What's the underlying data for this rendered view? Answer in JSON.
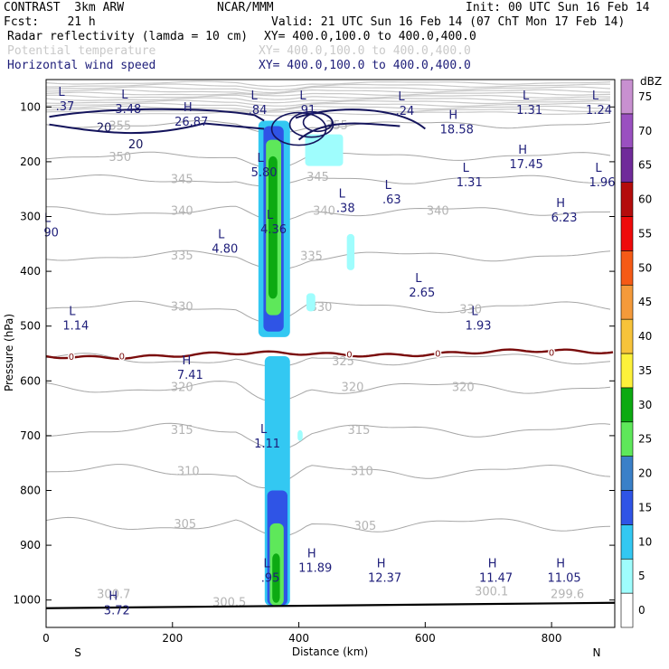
{
  "header": {
    "model": "CONTRAST  3km ARW",
    "org": "NCAR/MMM",
    "init": "Init: 00 UTC Sun 16 Feb 14",
    "fcst": "Fcst:    21 h",
    "valid": "Valid: 21 UTC Sun 16 Feb 14 (07 ChT Mon 17 Feb 14)",
    "fields": [
      {
        "name": "Radar reflectivity (lamda = 10 cm)",
        "xy": "XY= 400.0,100.0 to 400.0,400.0"
      },
      {
        "name": "Potential temperature",
        "xy": "XY= 400.0,100.0 to 400.0,400.0"
      },
      {
        "name": "Horizontal wind speed",
        "xy": "XY= 400.0,100.0 to 400.0,400.0"
      }
    ]
  },
  "chart_data": {
    "type": "cross-section",
    "xlabel": "Distance (km)",
    "ylabel": "Pressure (hPa)",
    "xlim": [
      0,
      900
    ],
    "ylim": [
      1050,
      50
    ],
    "x_ticks": [
      "0",
      "200",
      "400",
      "600",
      "800"
    ],
    "y_ticks": [
      "100",
      "200",
      "300",
      "400",
      "500",
      "600",
      "700",
      "800",
      "900",
      "1000"
    ],
    "x_end_labels": {
      "left": "S",
      "right": "N"
    },
    "colorbar": {
      "unit": "dBZ",
      "levels": [
        "0",
        "5",
        "10",
        "15",
        "20",
        "25",
        "30",
        "35",
        "40",
        "45",
        "50",
        "55",
        "60",
        "65",
        "70",
        "75"
      ],
      "colors": [
        "#ffffff",
        "#9ffdfd",
        "#33c8f2",
        "#2f54e6",
        "#3a80c8",
        "#5ee85a",
        "#0caa12",
        "#fdf13a",
        "#f7c33a",
        "#f49a3a",
        "#f55a16",
        "#ee0a0a",
        "#b40c0c",
        "#702a9a",
        "#9a50c0",
        "#c890d0"
      ]
    },
    "theta_contours": [
      {
        "label": "355",
        "p": 132
      },
      {
        "label": "350",
        "p": 190
      },
      {
        "label": "345",
        "p": 232
      },
      {
        "label": "340",
        "p": 290
      },
      {
        "label": "335",
        "p": 372
      },
      {
        "label": "330",
        "p": 465
      },
      {
        "label": "325",
        "p": 560
      },
      {
        "label": "320",
        "p": 612
      },
      {
        "label": "315",
        "p": 690
      },
      {
        "label": "310",
        "p": 765
      },
      {
        "label": "305",
        "p": 862
      },
      {
        "label": "300.7",
        "p": 990
      },
      {
        "label": "300.5",
        "p": 1000
      },
      {
        "label": "300.1",
        "p": 980
      },
      {
        "label": "299.6",
        "p": 985
      }
    ],
    "freezing_level": {
      "label": "0",
      "p": 555
    },
    "wind_contours": [
      "20",
      "20"
    ],
    "wind_extrema": [
      {
        "type": "L",
        "value": ".37",
        "x": 30,
        "p": 80
      },
      {
        "type": "L",
        "value": "3.48",
        "x": 130,
        "p": 85
      },
      {
        "type": "H",
        "value": "26.87",
        "x": 230,
        "p": 108
      },
      {
        "type": "L",
        "value": ".84",
        "x": 335,
        "p": 86
      },
      {
        "type": "L",
        "value": ".91",
        "x": 412,
        "p": 86
      },
      {
        "type": "L",
        "value": ".24",
        "x": 568,
        "p": 88
      },
      {
        "type": "H",
        "value": "18.58",
        "x": 650,
        "p": 122
      },
      {
        "type": "L",
        "value": "1.31",
        "x": 765,
        "p": 86
      },
      {
        "type": "L",
        "value": "1.24",
        "x": 875,
        "p": 86
      },
      {
        "type": "L",
        "value": "5.80",
        "x": 345,
        "p": 200
      },
      {
        "type": "H",
        "value": "17.45",
        "x": 760,
        "p": 185
      },
      {
        "type": "L",
        "value": "1.31",
        "x": 670,
        "p": 218
      },
      {
        "type": "L",
        "value": "1.96",
        "x": 880,
        "p": 218
      },
      {
        "type": "L",
        "value": ".63",
        "x": 547,
        "p": 250
      },
      {
        "type": "L",
        "value": ".38",
        "x": 474,
        "p": 265
      },
      {
        "type": "H",
        "value": "6.23",
        "x": 820,
        "p": 283
      },
      {
        "type": "L",
        "value": "4.36",
        "x": 360,
        "p": 304
      },
      {
        "type": "L",
        "value": "4.80",
        "x": 283,
        "p": 340
      },
      {
        "type": "L",
        "value": "90",
        "x": 8,
        "p": 310
      },
      {
        "type": "L",
        "value": "2.65",
        "x": 595,
        "p": 420
      },
      {
        "type": "L",
        "value": "1.14",
        "x": 47,
        "p": 480
      },
      {
        "type": "L",
        "value": "1.93",
        "x": 684,
        "p": 480
      },
      {
        "type": "H",
        "value": "7.41",
        "x": 228,
        "p": 570
      },
      {
        "type": "L",
        "value": "1.11",
        "x": 350,
        "p": 695
      },
      {
        "type": "H",
        "value": "11.89",
        "x": 426,
        "p": 922
      },
      {
        "type": "H",
        "value": "12.37",
        "x": 536,
        "p": 940
      },
      {
        "type": "H",
        "value": "11.47",
        "x": 712,
        "p": 940
      },
      {
        "type": "H",
        "value": "11.05",
        "x": 820,
        "p": 940
      },
      {
        "type": "L",
        "value": ".95",
        "x": 355,
        "p": 940
      },
      {
        "type": "H",
        "value": "3.72",
        "x": 112,
        "p": 1000
      }
    ],
    "reflectivity_columns": [
      {
        "x0": 336,
        "x1": 386,
        "p0": 125,
        "p1": 520,
        "dbz": 10
      },
      {
        "x0": 344,
        "x1": 376,
        "p0": 135,
        "p1": 510,
        "dbz": 15
      },
      {
        "x0": 348,
        "x1": 372,
        "p0": 160,
        "p1": 480,
        "dbz": 25
      },
      {
        "x0": 352,
        "x1": 366,
        "p0": 190,
        "p1": 450,
        "dbz": 30
      },
      {
        "x0": 346,
        "x1": 386,
        "p0": 555,
        "p1": 1010,
        "dbz": 10
      },
      {
        "x0": 350,
        "x1": 382,
        "p0": 800,
        "p1": 1010,
        "dbz": 15
      },
      {
        "x0": 354,
        "x1": 376,
        "p0": 860,
        "p1": 1010,
        "dbz": 25
      },
      {
        "x0": 358,
        "x1": 370,
        "p0": 915,
        "p1": 1005,
        "dbz": 30
      }
    ]
  }
}
